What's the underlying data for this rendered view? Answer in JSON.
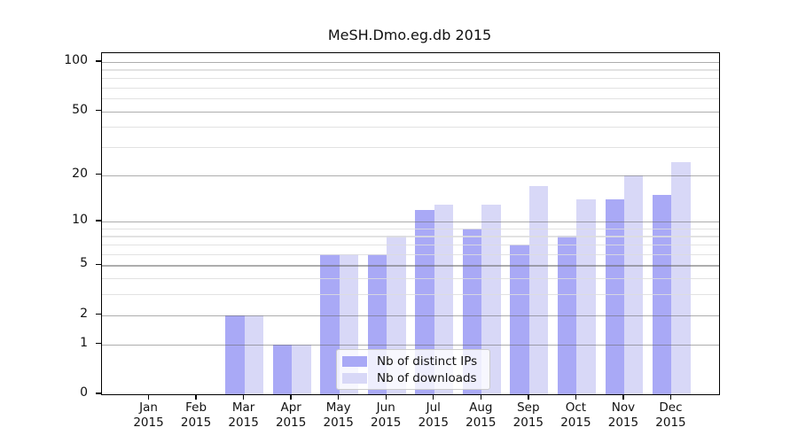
{
  "chart_data": {
    "type": "bar",
    "title": "MeSH.Dmo.eg.db 2015",
    "categories": [
      "Jan 2015",
      "Feb 2015",
      "Mar 2015",
      "Apr 2015",
      "May 2015",
      "Jun 2015",
      "Jul 2015",
      "Aug 2015",
      "Sep 2015",
      "Oct 2015",
      "Nov 2015",
      "Dec 2015"
    ],
    "series": [
      {
        "key": "distinct-ips",
        "name": "Nb of distinct IPs",
        "color": "#a9a9f6",
        "values": [
          0,
          0,
          2,
          1,
          6,
          6,
          12,
          9,
          7,
          8,
          14,
          15
        ]
      },
      {
        "key": "downloads",
        "name": "Nb of downloads",
        "color": "#d8d8f7",
        "values": [
          0,
          0,
          2,
          1,
          6,
          8,
          13,
          13,
          17,
          14,
          20,
          24
        ]
      }
    ],
    "xlabel": "",
    "ylabel": "",
    "yscale": "log1p",
    "ylim": [
      0,
      113
    ],
    "yticks": [
      0,
      1,
      2,
      5,
      10,
      20,
      50,
      100
    ],
    "minor_gridlines": [
      3,
      4,
      6,
      7,
      8,
      9,
      30,
      40,
      60,
      70,
      80,
      90
    ],
    "grid": "on",
    "legend_position": "lower-center-inside"
  },
  "colors": {
    "bar_ips": "#a9a9f6",
    "bar_downloads": "#d8d8f7",
    "grid_major": "#adadad",
    "grid_minor": "#e3e3e3",
    "axis": "#000000",
    "background": "#ffffff"
  }
}
